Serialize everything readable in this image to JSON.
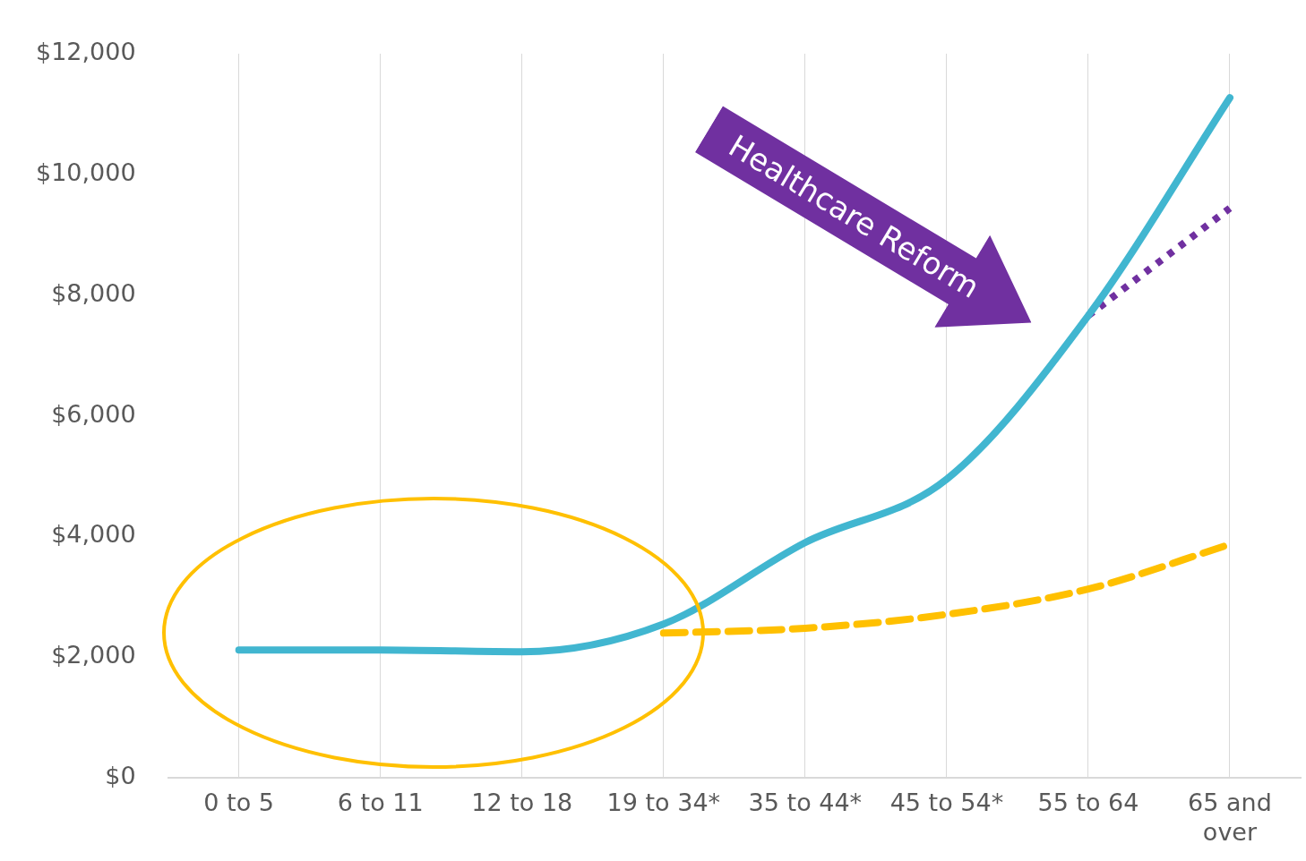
{
  "chart_data": {
    "type": "line",
    "categories": [
      "0 to 5",
      "6 to 11",
      "12 to 18",
      "19 to 34*",
      "35 to 44*",
      "45 to 54*",
      "55 to 64",
      "65 and over"
    ],
    "ylim": [
      0,
      12000
    ],
    "yticks": [
      {
        "value": 0,
        "label": "$0"
      },
      {
        "value": 2000,
        "label": "$2,000"
      },
      {
        "value": 4000,
        "label": "$4,000"
      },
      {
        "value": 6000,
        "label": "$6,000"
      },
      {
        "value": 8000,
        "label": "$8,000"
      },
      {
        "value": 10000,
        "label": "$10,000"
      },
      {
        "value": 12000,
        "label": "$12,000"
      }
    ],
    "series": [
      {
        "color": "#41b6d0",
        "line_style": "solid",
        "values": [
          2120,
          2120,
          2090,
          2550,
          3900,
          4950,
          7660,
          11270
        ]
      },
      {
        "color": "#ffc000",
        "line_style": "dashed",
        "values": [
          null,
          null,
          null,
          2400,
          2480,
          2710,
          3130,
          3870
        ]
      },
      {
        "color": "#7030a0",
        "line_style": "dotted",
        "values": [
          null,
          null,
          null,
          null,
          null,
          null,
          7660,
          9440
        ]
      }
    ],
    "marker": "none",
    "grid": "x",
    "legend": false,
    "annotations": [
      "Healthcare Reform"
    ]
  }
}
